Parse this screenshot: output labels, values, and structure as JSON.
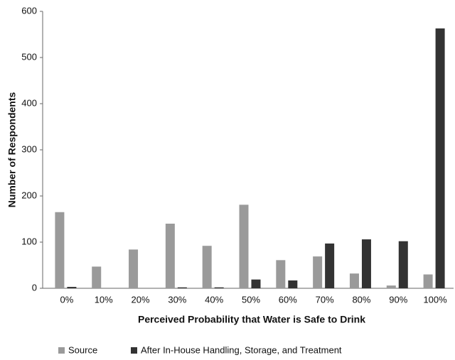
{
  "chart_data": {
    "type": "bar",
    "x_label": "Perceived Probability that Water is Safe to Drink",
    "y_label": "Number of Respondents",
    "categories": [
      "0%",
      "10%",
      "20%",
      "30%",
      "40%",
      "50%",
      "60%",
      "70%",
      "80%",
      "90%",
      "100%"
    ],
    "series": [
      {
        "name": "Source",
        "color": "#9a9a9a",
        "values": [
          165,
          47,
          84,
          140,
          92,
          181,
          61,
          69,
          32,
          6,
          30
        ]
      },
      {
        "name": "After In-House Handling, Storage, and Treatment",
        "color": "#333333",
        "values": [
          3,
          0,
          0,
          2,
          2,
          19,
          17,
          97,
          106,
          102,
          563
        ]
      }
    ],
    "ylim": [
      0,
      600
    ],
    "yticks": [
      0,
      100,
      200,
      300,
      400,
      500,
      600
    ],
    "grid": false,
    "legend": "bottom"
  }
}
